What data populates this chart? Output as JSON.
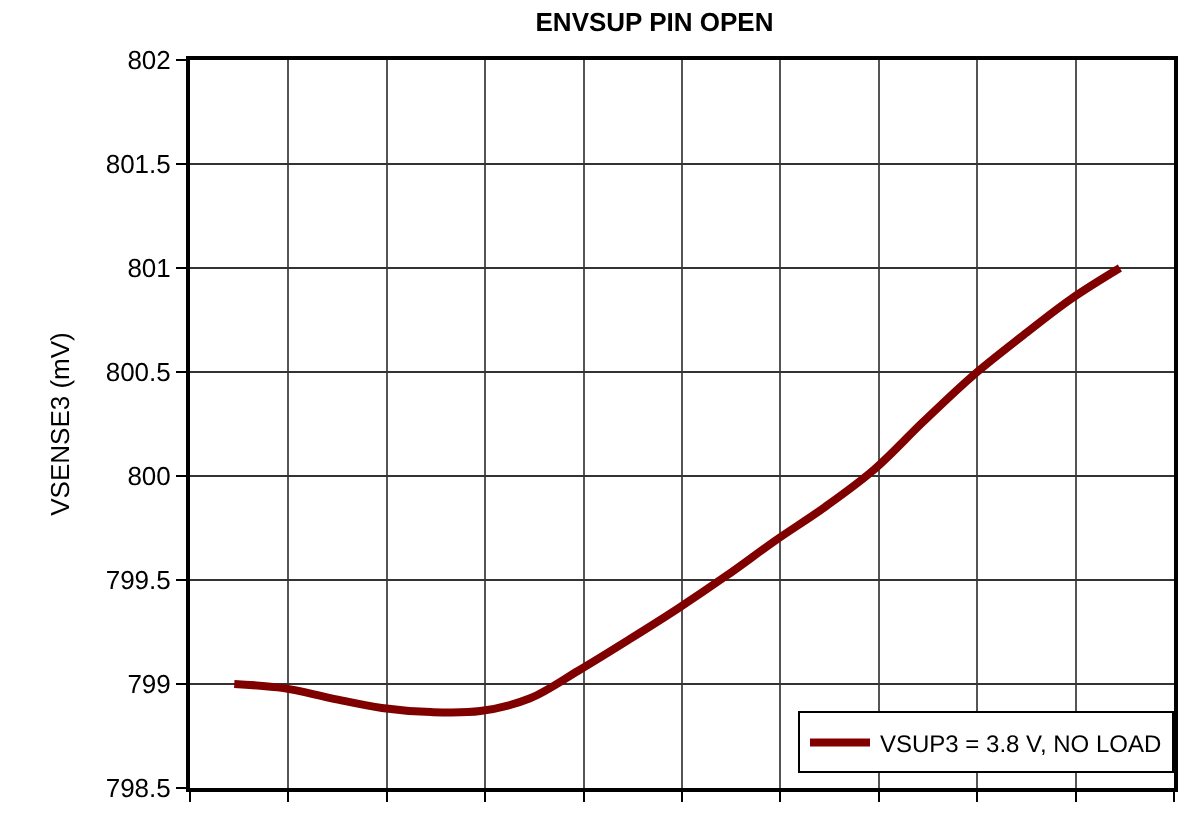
{
  "chart_data": {
    "type": "line",
    "title": "ENVSUP PIN OPEN",
    "ylabel": "VSENSE3 (mV)",
    "categories": [
      null,
      null,
      null,
      null,
      null,
      null,
      null,
      null,
      null,
      null,
      null,
      null,
      null,
      null,
      null,
      null,
      null,
      null,
      null
    ],
    "series": [
      {
        "name": "VSUP3 = 3.8 V, NO LOAD",
        "color": "#800000",
        "values": [
          799.0,
          798.98,
          798.93,
          798.885,
          798.865,
          798.87,
          798.93,
          799.065,
          799.21,
          799.36,
          799.52,
          799.69,
          799.85,
          800.03,
          800.26,
          800.48,
          800.67,
          800.85,
          801.0
        ]
      }
    ],
    "ylim": [
      798.5,
      802
    ],
    "yticks": [
      798.5,
      799,
      799.5,
      800,
      800.5,
      801,
      801.5,
      802
    ],
    "grid": true,
    "legend": "bottom right",
    "marker": "none",
    "line_style": "solid"
  }
}
